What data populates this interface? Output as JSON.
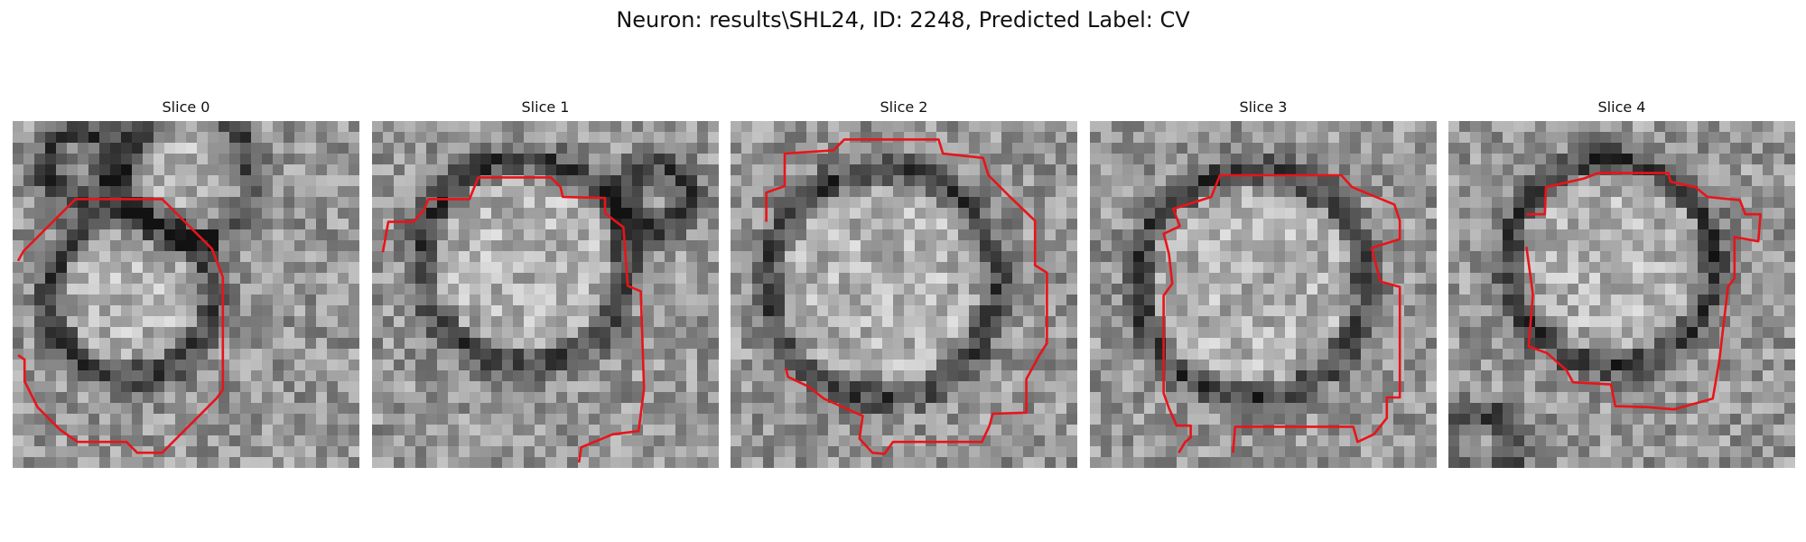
{
  "figure": {
    "title": "Neuron: results\\SHL24, ID: 2248, Predicted Label: CV"
  },
  "colors": {
    "contour": "#e8141a",
    "background": "#ffffff"
  },
  "panels": [
    {
      "title": "Slice 0"
    },
    {
      "title": "Slice 1"
    },
    {
      "title": "Slice 2"
    },
    {
      "title": "Slice 3"
    },
    {
      "title": "Slice 4"
    }
  ]
}
